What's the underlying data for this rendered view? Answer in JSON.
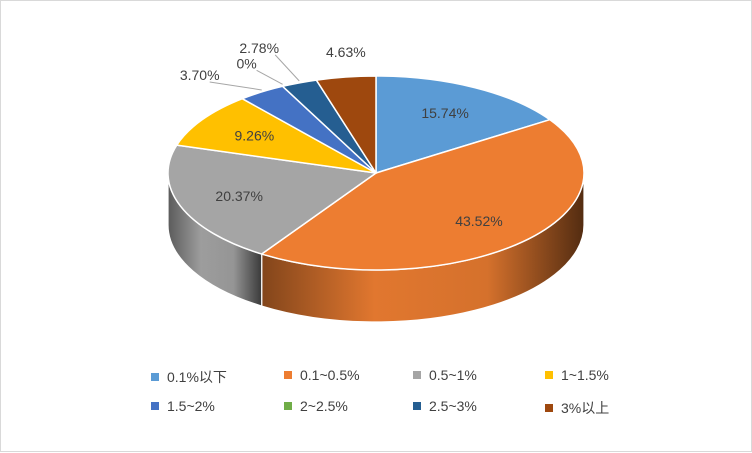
{
  "chart_data": {
    "type": "pie",
    "style": "3d",
    "categories": [
      "0.1%以下",
      "0.1~0.5%",
      "0.5~1%",
      "1~1.5%",
      "1.5~2%",
      "2~2.5%",
      "2.5~3%",
      "3%以上"
    ],
    "values": [
      15.74,
      43.52,
      20.37,
      9.26,
      3.7,
      0,
      2.78,
      4.63
    ],
    "data_labels": [
      "15.74%",
      "43.52%",
      "20.37%",
      "9.26%",
      "3.70%",
      "0%",
      "2.78%",
      "4.63%"
    ],
    "colors": [
      "#5b9bd5",
      "#ed7d31",
      "#a5a5a5",
      "#ffc000",
      "#4472c4",
      "#70ad47",
      "#255e91",
      "#9e480e"
    ],
    "legend_position": "bottom"
  }
}
